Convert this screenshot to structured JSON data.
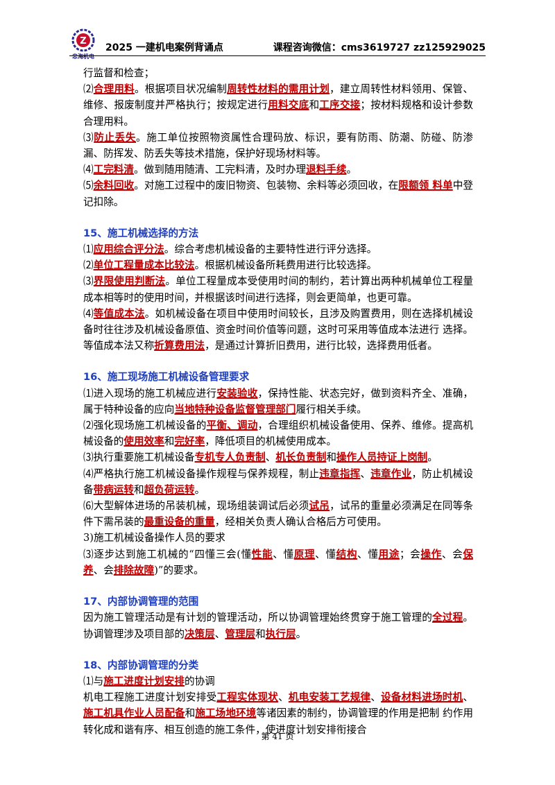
{
  "header": {
    "logo_text": "忠海机电",
    "logo_subtext": "ZHONG HAI JI DIAN",
    "title": "2025 一建机电案例背诵点",
    "contact": "课程咨询微信：cms3619727   zz125929025"
  },
  "p0": "行监督和检查；",
  "p1": [
    "⑵",
    "合理用料",
    "。根据项目状况编制",
    "周转性材料的需用计划",
    "，建立周转性材料领用、保管、维修、报废制度并严格执行；按规定进行",
    "用料交底",
    "和",
    "工序交接",
    "；按材料规格和设计参数合理用料。"
  ],
  "p2": [
    "⑶",
    "防止丢失",
    "。施工单位按照物资属性合理码放、标识，要有防雨、防潮、防碰、防渗漏、防挥发、防丢失等技术措施，保护好现场材料等。"
  ],
  "p3": [
    "⑷",
    "工完料清",
    "。做到随用随清、工完料清，及时办理",
    "退料手续",
    "。"
  ],
  "p4": [
    "⑸",
    "余料回收",
    "。对施工过程中的废旧物资、包装物、余料等必须回收，在",
    "限额领 料单",
    "中登记扣除。"
  ],
  "h15": "15、施工机械选择的方法",
  "s15_1": [
    "⑴",
    "应用综合评分法",
    "。综合考虑机械设备的主要特性进行评分选择。"
  ],
  "s15_2": [
    "⑵",
    "单位工程量成本比较法",
    "。根据机械设备所耗费用进行比较选择。"
  ],
  "s15_3": [
    "⑶",
    "界限使用判断法",
    "。单位工程量成本受使用时间的制约，若计算出两种机械单位工程量成本相等时的使用时间，并根据该时间进行选择，则会更简单，也更可靠。"
  ],
  "s15_4": [
    "⑷",
    "等值成本法",
    "。如机械设备在项目中使用时间较长，且涉及购置费用，则在选择机械设备时往往涉及机械设备原值、资金时间价值等问题，这时可采用等值成本法进行  选择。等值成本法又称",
    "折算费用法",
    "，是通过计算折旧费用，进行比较，选择费用低者。"
  ],
  "h16": "16、施工现场施工机械设备管理要求",
  "s16_1": [
    "⑴进入现场的施工机械应进行",
    "安装验收",
    "，保持性能、状态完好，做到资料齐全、准确，属于特种设备的应向",
    "当地特种设备监督管理部门",
    "履行相关手续。"
  ],
  "s16_2": [
    "⑵强化现场施工机械设备的",
    "平衡、调动",
    "，合理组织机械设备使用、保养、维修。提高机械设备的",
    "使用效率",
    "和",
    "完好率",
    "，降低项目的机械使用成本。"
  ],
  "s16_3": [
    "⑶执行重要施工机械设备",
    "专机专人负责制",
    "、",
    "机长负责制",
    "和",
    "操作人员持证上岗制",
    "。"
  ],
  "s16_4": [
    "⑷严格执行施工机械设备操作规程与保养规程，制止",
    "违章指挥",
    "、",
    "违章作业",
    "，防止机械设备",
    "带病运转",
    "和",
    "超负荷运转",
    "。"
  ],
  "s16_6": [
    "⑹大型解体进场的吊装机械，现场组装调试后必须",
    "试吊",
    "，试吊的重量必须满足在同等条件下需吊装的",
    "最重设备的重量",
    "，经相关负责人确认合格后方可使用。"
  ],
  "s16_3b": "3)施工机械设备操作人员的要求",
  "s16_3c": [
    "⑶逐步达到施工机械的“四懂三会(懂",
    "性能",
    "、懂",
    "原理",
    "、懂",
    "结构",
    "、懂",
    "用途",
    "；会",
    "操作",
    "、会",
    "保养",
    "、会",
    "排除故障",
    ")”的要求。"
  ],
  "h17": "17、内部协调管理的范围",
  "s17": [
    "因为施工管理活动是有计划的管理活动，所以协调管理始终贯穿于施工管理的",
    "全过程",
    "。协调管理涉及项目部的",
    "决策层",
    "、",
    "管理层",
    "和",
    "执行层",
    "。"
  ],
  "h18": "18、内部协调管理的分类",
  "s18_1": [
    "⑴与",
    "施工进度计划安排",
    "的协调"
  ],
  "s18_2": [
    "机电工程施工进度计划安排受",
    "工程实体现状",
    "、",
    "机电安装工艺规律",
    "、",
    "设备材料进场时机",
    "、",
    "施工机具作业人员配备",
    "和",
    "施工场地环境",
    "等诸因素的制约，协调管理的作用是把制  约作用转化成和谐有序、相互创造的施工条件，使进度计划安排衔接合"
  ],
  "footer": "第 41 页",
  "colors": {
    "keyword": "#c00000",
    "heading": "#1f3fbf"
  }
}
